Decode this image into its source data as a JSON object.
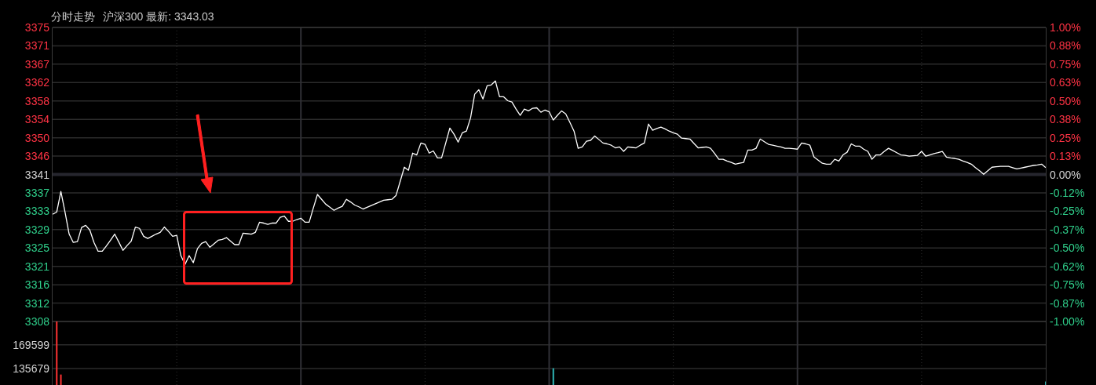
{
  "chart_data": [
    {
      "type": "line",
      "title": "分时走势",
      "subtitle": "沪深300 最新: 3343.03",
      "color": "#ffffff",
      "categories": [
        null,
        null,
        null,
        null,
        null,
        null,
        null,
        null,
        null,
        null,
        null,
        null,
        null,
        null,
        null,
        null,
        null,
        null,
        null,
        null,
        null,
        null,
        null,
        null,
        null,
        null,
        null,
        null,
        null,
        null,
        null,
        null,
        null,
        null,
        null,
        null,
        null,
        null,
        null,
        null,
        null,
        null,
        null,
        null,
        null,
        null,
        null,
        null,
        null,
        null,
        null,
        null,
        null,
        null,
        null,
        null,
        null,
        null,
        null,
        null,
        null,
        null,
        null,
        null,
        null,
        null,
        null,
        null,
        null,
        null,
        null,
        null,
        null,
        null,
        null,
        null,
        null,
        null,
        null,
        null,
        null,
        null,
        null,
        null,
        null,
        null,
        null,
        null,
        null,
        null,
        null,
        null,
        null,
        null,
        null,
        null,
        null,
        null,
        null,
        null,
        null,
        null,
        null,
        null,
        null,
        null,
        null,
        null,
        null,
        null,
        null,
        null,
        null,
        null,
        null,
        null,
        null,
        null,
        null,
        null,
        null,
        null,
        null,
        null,
        null,
        null,
        null,
        null,
        null,
        null,
        null,
        null,
        null,
        null,
        null,
        null,
        null,
        null,
        null,
        null,
        null,
        null,
        null,
        null,
        null,
        null,
        null,
        null,
        null,
        null,
        null,
        null,
        null,
        null,
        null,
        null,
        null,
        null,
        null,
        null,
        null,
        null,
        null,
        null,
        null,
        null,
        null,
        null,
        null,
        null,
        null,
        null,
        null,
        null,
        null,
        null,
        null,
        null,
        null,
        null,
        null,
        null,
        null,
        null,
        null,
        null,
        null,
        null,
        null,
        null,
        null,
        null,
        null,
        null,
        null,
        null,
        null,
        null,
        null,
        null,
        null,
        null,
        null,
        null,
        null,
        null,
        null,
        null,
        null,
        null,
        null,
        null,
        null,
        null,
        null,
        null,
        null,
        null,
        null,
        null,
        null,
        null,
        null,
        null,
        null,
        null,
        null,
        null,
        null,
        null,
        null,
        null,
        null,
        null,
        null,
        null,
        null,
        null,
        null,
        null,
        null
      ],
      "values": [
        3332.4,
        3332.9,
        3337.6,
        3332.9,
        3327.9,
        3326.0,
        3326.2,
        3329.4,
        3329.9,
        3328.8,
        3326.0,
        3324.0,
        3324.0,
        3325.2,
        3326.5,
        3327.9,
        3326.1,
        3324.2,
        3325.3,
        3326.3,
        3329.5,
        3329.2,
        3327.4,
        3326.9,
        3327.4,
        3327.9,
        3328.3,
        3329.5,
        3328.5,
        3327.4,
        3327.6,
        3323.0,
        3321.0,
        3323.0,
        3321.4,
        3324.6,
        3325.8,
        3326.2,
        3324.9,
        3325.7,
        3326.5,
        3326.7,
        3327.1,
        3326.3,
        3325.5,
        3325.5,
        3328.1,
        3328.0,
        3327.9,
        3328.3,
        3330.6,
        3330.4,
        3330.1,
        3330.4,
        3330.4,
        3331.7,
        3332.0,
        3330.8,
        3330.8,
        3331.2,
        3331.5,
        3330.6,
        3330.6,
        3333.8,
        3336.9,
        3335.8,
        3334.7,
        3334.0,
        3333.3,
        3333.8,
        3334.2,
        3335.8,
        3335.2,
        3334.5,
        3334.1,
        3333.6,
        3334.0,
        3334.4,
        3334.8,
        3335.2,
        3335.6,
        3335.7,
        3335.8,
        3336.7,
        3339.9,
        3343.1,
        3342.4,
        3346.3,
        3345.9,
        3348.6,
        3348.3,
        3346.3,
        3346.8,
        3345.2,
        3345.2,
        3348.6,
        3352.0,
        3350.6,
        3348.8,
        3350.9,
        3351.3,
        3354.3,
        3359.7,
        3360.7,
        3358.6,
        3361.6,
        3361.8,
        3362.7,
        3359.1,
        3359.1,
        3358.2,
        3357.9,
        3356.3,
        3354.9,
        3356.3,
        3355.9,
        3356.5,
        3356.6,
        3355.6,
        3356.1,
        3355.7,
        3353.8,
        3354.9,
        3355.9,
        3355.2,
        3353.3,
        3351.3,
        3347.4,
        3347.7,
        3349.0,
        3349.2,
        3350.2,
        3349.4,
        3348.6,
        3348.4,
        3348.1,
        3347.5,
        3347.7,
        3346.7,
        3347.7,
        3347.6,
        3347.5,
        3348.1,
        3348.6,
        3352.9,
        3351.5,
        3351.9,
        3352.2,
        3351.8,
        3351.3,
        3350.9,
        3350.6,
        3349.7,
        3349.6,
        3349.5,
        3348.5,
        3347.5,
        3347.6,
        3347.7,
        3347.4,
        3346.2,
        3344.9,
        3344.9,
        3344.5,
        3344.2,
        3343.8,
        3344.0,
        3344.2,
        3347.0,
        3347.0,
        3347.4,
        3349.5,
        3348.9,
        3348.3,
        3348.1,
        3347.9,
        3347.7,
        3347.4,
        3347.4,
        3347.3,
        3347.2,
        3348.6,
        3348.4,
        3348.1,
        3345.4,
        3344.7,
        3344.0,
        3343.8,
        3343.8,
        3344.9,
        3344.5,
        3345.9,
        3346.5,
        3348.4,
        3347.9,
        3347.9,
        3347.2,
        3346.7,
        3344.9,
        3345.9,
        3345.9,
        3346.7,
        3347.4,
        3346.9,
        3346.4,
        3345.9,
        3345.8,
        3345.6,
        3345.7,
        3345.8,
        3346.7,
        3345.6,
        3345.9,
        3346.2,
        3346.4,
        3346.7,
        3345.4,
        3345.2,
        3345.1,
        3344.9,
        3344.5,
        3344.2,
        3343.8,
        3343.0,
        3342.3,
        3341.5,
        3342.3,
        3343.1,
        3343.2,
        3343.3,
        3343.3,
        3343.3,
        3343.0,
        3342.7,
        3342.9,
        3343.1,
        3343.3,
        3343.5,
        3343.6,
        3343.8,
        3343.0
      ],
      "ylim": [
        3308.04,
        3374.86
      ],
      "yticks": [
        {
          "value": 3308.04,
          "label": "3308"
        },
        {
          "value": 3312.21,
          "label": "3312"
        },
        {
          "value": 3316.39,
          "label": "3316"
        },
        {
          "value": 3320.57,
          "label": "3321"
        },
        {
          "value": 3324.74,
          "label": "3325"
        },
        {
          "value": 3328.92,
          "label": "3329"
        },
        {
          "value": 3333.1,
          "label": "3333"
        },
        {
          "value": 3337.27,
          "label": "3337"
        },
        {
          "value": 3341.45,
          "label": "3341"
        },
        {
          "value": 3345.63,
          "label": "3346"
        },
        {
          "value": 3349.8,
          "label": "3350"
        },
        {
          "value": 3353.98,
          "label": "3354"
        },
        {
          "value": 3358.16,
          "label": "3358"
        },
        {
          "value": 3362.33,
          "label": "3362"
        },
        {
          "value": 3366.51,
          "label": "3367"
        },
        {
          "value": 3370.69,
          "label": "3371"
        },
        {
          "value": 3374.86,
          "label": "3375"
        }
      ],
      "y2lim": [
        -1,
        1
      ],
      "y2ticks": [
        {
          "value": -1,
          "label": "-1.00%"
        },
        {
          "value": -0.875,
          "label": "-0.87%"
        },
        {
          "value": -0.75,
          "label": "-0.75%"
        },
        {
          "value": -0.625,
          "label": "-0.62%"
        },
        {
          "value": -0.5,
          "label": "-0.50%"
        },
        {
          "value": -0.375,
          "label": "-0.37%"
        },
        {
          "value": -0.25,
          "label": "-0.25%"
        },
        {
          "value": -0.125,
          "label": "-0.12%"
        },
        {
          "value": 0,
          "label": "0.00%"
        },
        {
          "value": 0.125,
          "label": "0.13%"
        },
        {
          "value": 0.25,
          "label": "0.25%"
        },
        {
          "value": 0.375,
          "label": "0.38%"
        },
        {
          "value": 0.5,
          "label": "0.50%"
        },
        {
          "value": 0.625,
          "label": "0.63%"
        },
        {
          "value": 0.75,
          "label": "0.75%"
        },
        {
          "value": 0.875,
          "label": "0.88%"
        },
        {
          "value": 1,
          "label": "1.00%"
        }
      ],
      "ref_lines": [
        {
          "axis": "y",
          "value": 3341.45,
          "color": "#26262e"
        }
      ],
      "grid": true,
      "tick_labels": "y"
    },
    {
      "type": "bar",
      "categories": [
        null,
        null,
        null,
        null,
        null,
        null,
        null,
        null,
        null,
        null,
        null,
        null,
        null,
        null,
        null,
        null,
        null,
        null,
        null,
        null,
        null,
        null,
        null,
        null,
        null,
        null,
        null,
        null,
        null,
        null,
        null,
        null,
        null,
        null,
        null,
        null,
        null,
        null,
        null,
        null,
        null,
        null,
        null,
        null,
        null,
        null,
        null,
        null,
        null,
        null,
        null,
        null,
        null,
        null,
        null,
        null,
        null,
        null,
        null,
        null,
        null,
        null,
        null,
        null,
        null,
        null,
        null,
        null,
        null,
        null,
        null,
        null,
        null,
        null,
        null,
        null,
        null,
        null,
        null,
        null,
        null,
        null,
        null,
        null,
        null,
        null,
        null,
        null,
        null,
        null,
        null,
        null,
        null,
        null,
        null,
        null,
        null,
        null,
        null,
        null,
        null,
        null,
        null,
        null,
        null,
        null,
        null,
        null,
        null,
        null,
        null,
        null,
        null,
        null,
        null,
        null,
        null,
        null,
        null,
        null,
        null,
        null,
        null,
        null,
        null,
        null,
        null,
        null,
        null,
        null,
        null,
        null,
        null,
        null,
        null,
        null,
        null,
        null,
        null,
        null,
        null,
        null,
        null,
        null,
        null,
        null,
        null,
        null,
        null,
        null,
        null,
        null,
        null,
        null,
        null,
        null,
        null,
        null,
        null,
        null,
        null,
        null,
        null,
        null,
        null,
        null,
        null,
        null,
        null,
        null,
        null,
        null,
        null,
        null,
        null,
        null,
        null,
        null,
        null,
        null,
        null,
        null,
        null,
        null,
        null,
        null,
        null,
        null,
        null,
        null,
        null,
        null,
        null,
        null,
        null,
        null,
        null,
        null,
        null,
        null,
        null,
        null,
        null,
        null,
        null,
        null,
        null,
        null,
        null,
        null,
        null,
        null,
        null,
        null,
        null,
        null,
        null,
        null,
        null,
        null,
        null,
        null,
        null,
        null,
        null,
        null,
        null,
        null,
        null,
        null,
        null,
        null,
        null,
        null,
        null,
        null,
        null,
        null,
        null,
        null,
        null
      ],
      "values": [
        null,
        203000,
        127000,
        null,
        null,
        null,
        null,
        null,
        null,
        null,
        null,
        null,
        null,
        null,
        null,
        null,
        null,
        null,
        null,
        null,
        null,
        null,
        null,
        null,
        null,
        null,
        null,
        null,
        null,
        null,
        null,
        null,
        null,
        null,
        null,
        null,
        null,
        null,
        null,
        null,
        null,
        null,
        null,
        null,
        null,
        null,
        null,
        null,
        null,
        null,
        null,
        null,
        null,
        null,
        null,
        null,
        null,
        null,
        null,
        null,
        null,
        null,
        null,
        null,
        null,
        null,
        null,
        null,
        null,
        null,
        null,
        null,
        null,
        null,
        null,
        null,
        null,
        null,
        null,
        null,
        null,
        null,
        null,
        null,
        null,
        null,
        null,
        null,
        null,
        null,
        null,
        null,
        null,
        null,
        null,
        null,
        null,
        null,
        null,
        null,
        null,
        null,
        null,
        null,
        null,
        null,
        null,
        null,
        null,
        null,
        null,
        null,
        null,
        null,
        null,
        null,
        null,
        null,
        null,
        null,
        null,
        136000,
        null,
        null,
        null,
        null,
        null,
        null,
        null,
        null,
        null,
        null,
        null,
        null,
        null,
        null,
        null,
        null,
        null,
        null,
        null,
        null,
        null,
        null,
        null,
        null,
        null,
        null,
        null,
        null,
        null,
        null,
        null,
        null,
        null,
        null,
        null,
        null,
        null,
        null,
        null,
        null,
        null,
        null,
        null,
        null,
        null,
        null,
        null,
        null,
        null,
        null,
        null,
        null,
        null,
        null,
        null,
        null,
        null,
        null,
        null,
        null,
        null,
        null,
        null,
        null,
        null,
        null,
        null,
        null,
        null,
        null,
        null,
        null,
        null,
        null,
        null,
        null,
        null,
        null,
        null,
        null,
        null,
        null,
        null,
        null,
        null,
        null,
        null,
        null,
        null,
        null,
        null,
        null,
        null,
        null,
        null,
        null,
        null,
        null,
        null,
        null,
        null,
        null,
        null,
        null,
        null,
        null,
        null,
        null,
        null,
        null,
        null,
        null,
        null,
        null,
        null,
        null,
        null,
        null,
        117000
      ],
      "colors": [
        null,
        "#ff3232",
        "#ff3232",
        null,
        null,
        null,
        null,
        null,
        null,
        null,
        null,
        null,
        null,
        null,
        null,
        null,
        null,
        null,
        null,
        null,
        null,
        null,
        null,
        null,
        null,
        null,
        null,
        null,
        null,
        null,
        null,
        null,
        null,
        null,
        null,
        null,
        null,
        null,
        null,
        null,
        null,
        null,
        null,
        null,
        null,
        null,
        null,
        null,
        null,
        null,
        null,
        null,
        null,
        null,
        null,
        null,
        null,
        null,
        null,
        null,
        null,
        null,
        null,
        null,
        null,
        null,
        null,
        null,
        null,
        null,
        null,
        null,
        null,
        null,
        null,
        null,
        null,
        null,
        null,
        null,
        null,
        null,
        null,
        null,
        null,
        null,
        null,
        null,
        null,
        null,
        null,
        null,
        null,
        null,
        null,
        null,
        null,
        null,
        null,
        null,
        null,
        null,
        null,
        null,
        null,
        null,
        null,
        null,
        null,
        null,
        null,
        null,
        null,
        null,
        null,
        null,
        null,
        null,
        null,
        null,
        null,
        "#2fb5b5",
        null,
        null,
        null,
        null,
        null,
        null,
        null,
        null,
        null,
        null,
        null,
        null,
        null,
        null,
        null,
        null,
        null,
        null,
        null,
        null,
        null,
        null,
        null,
        null,
        null,
        null,
        null,
        null,
        null,
        null,
        null,
        null,
        null,
        null,
        null,
        null,
        null,
        null,
        null,
        null,
        null,
        null,
        null,
        null,
        null,
        null,
        null,
        null,
        null,
        null,
        null,
        null,
        null,
        null,
        null,
        null,
        null,
        null,
        null,
        null,
        null,
        null,
        null,
        null,
        null,
        null,
        null,
        null,
        null,
        null,
        null,
        null,
        null,
        null,
        null,
        null,
        null,
        null,
        null,
        null,
        null,
        null,
        null,
        null,
        null,
        null,
        null,
        null,
        null,
        null,
        null,
        null,
        null,
        null,
        null,
        null,
        null,
        null,
        null,
        null,
        null,
        null,
        null,
        null,
        null,
        null,
        null,
        null,
        null,
        null,
        null,
        null,
        null,
        null,
        null,
        null,
        null,
        null,
        "#2fb5b5"
      ],
      "ylim": [
        112000,
        203000
      ],
      "yticks": [
        {
          "value": 169599,
          "label": "169599"
        },
        {
          "value": 135679,
          "label": "135679"
        }
      ],
      "grid": true,
      "tick_labels": "y"
    }
  ]
}
